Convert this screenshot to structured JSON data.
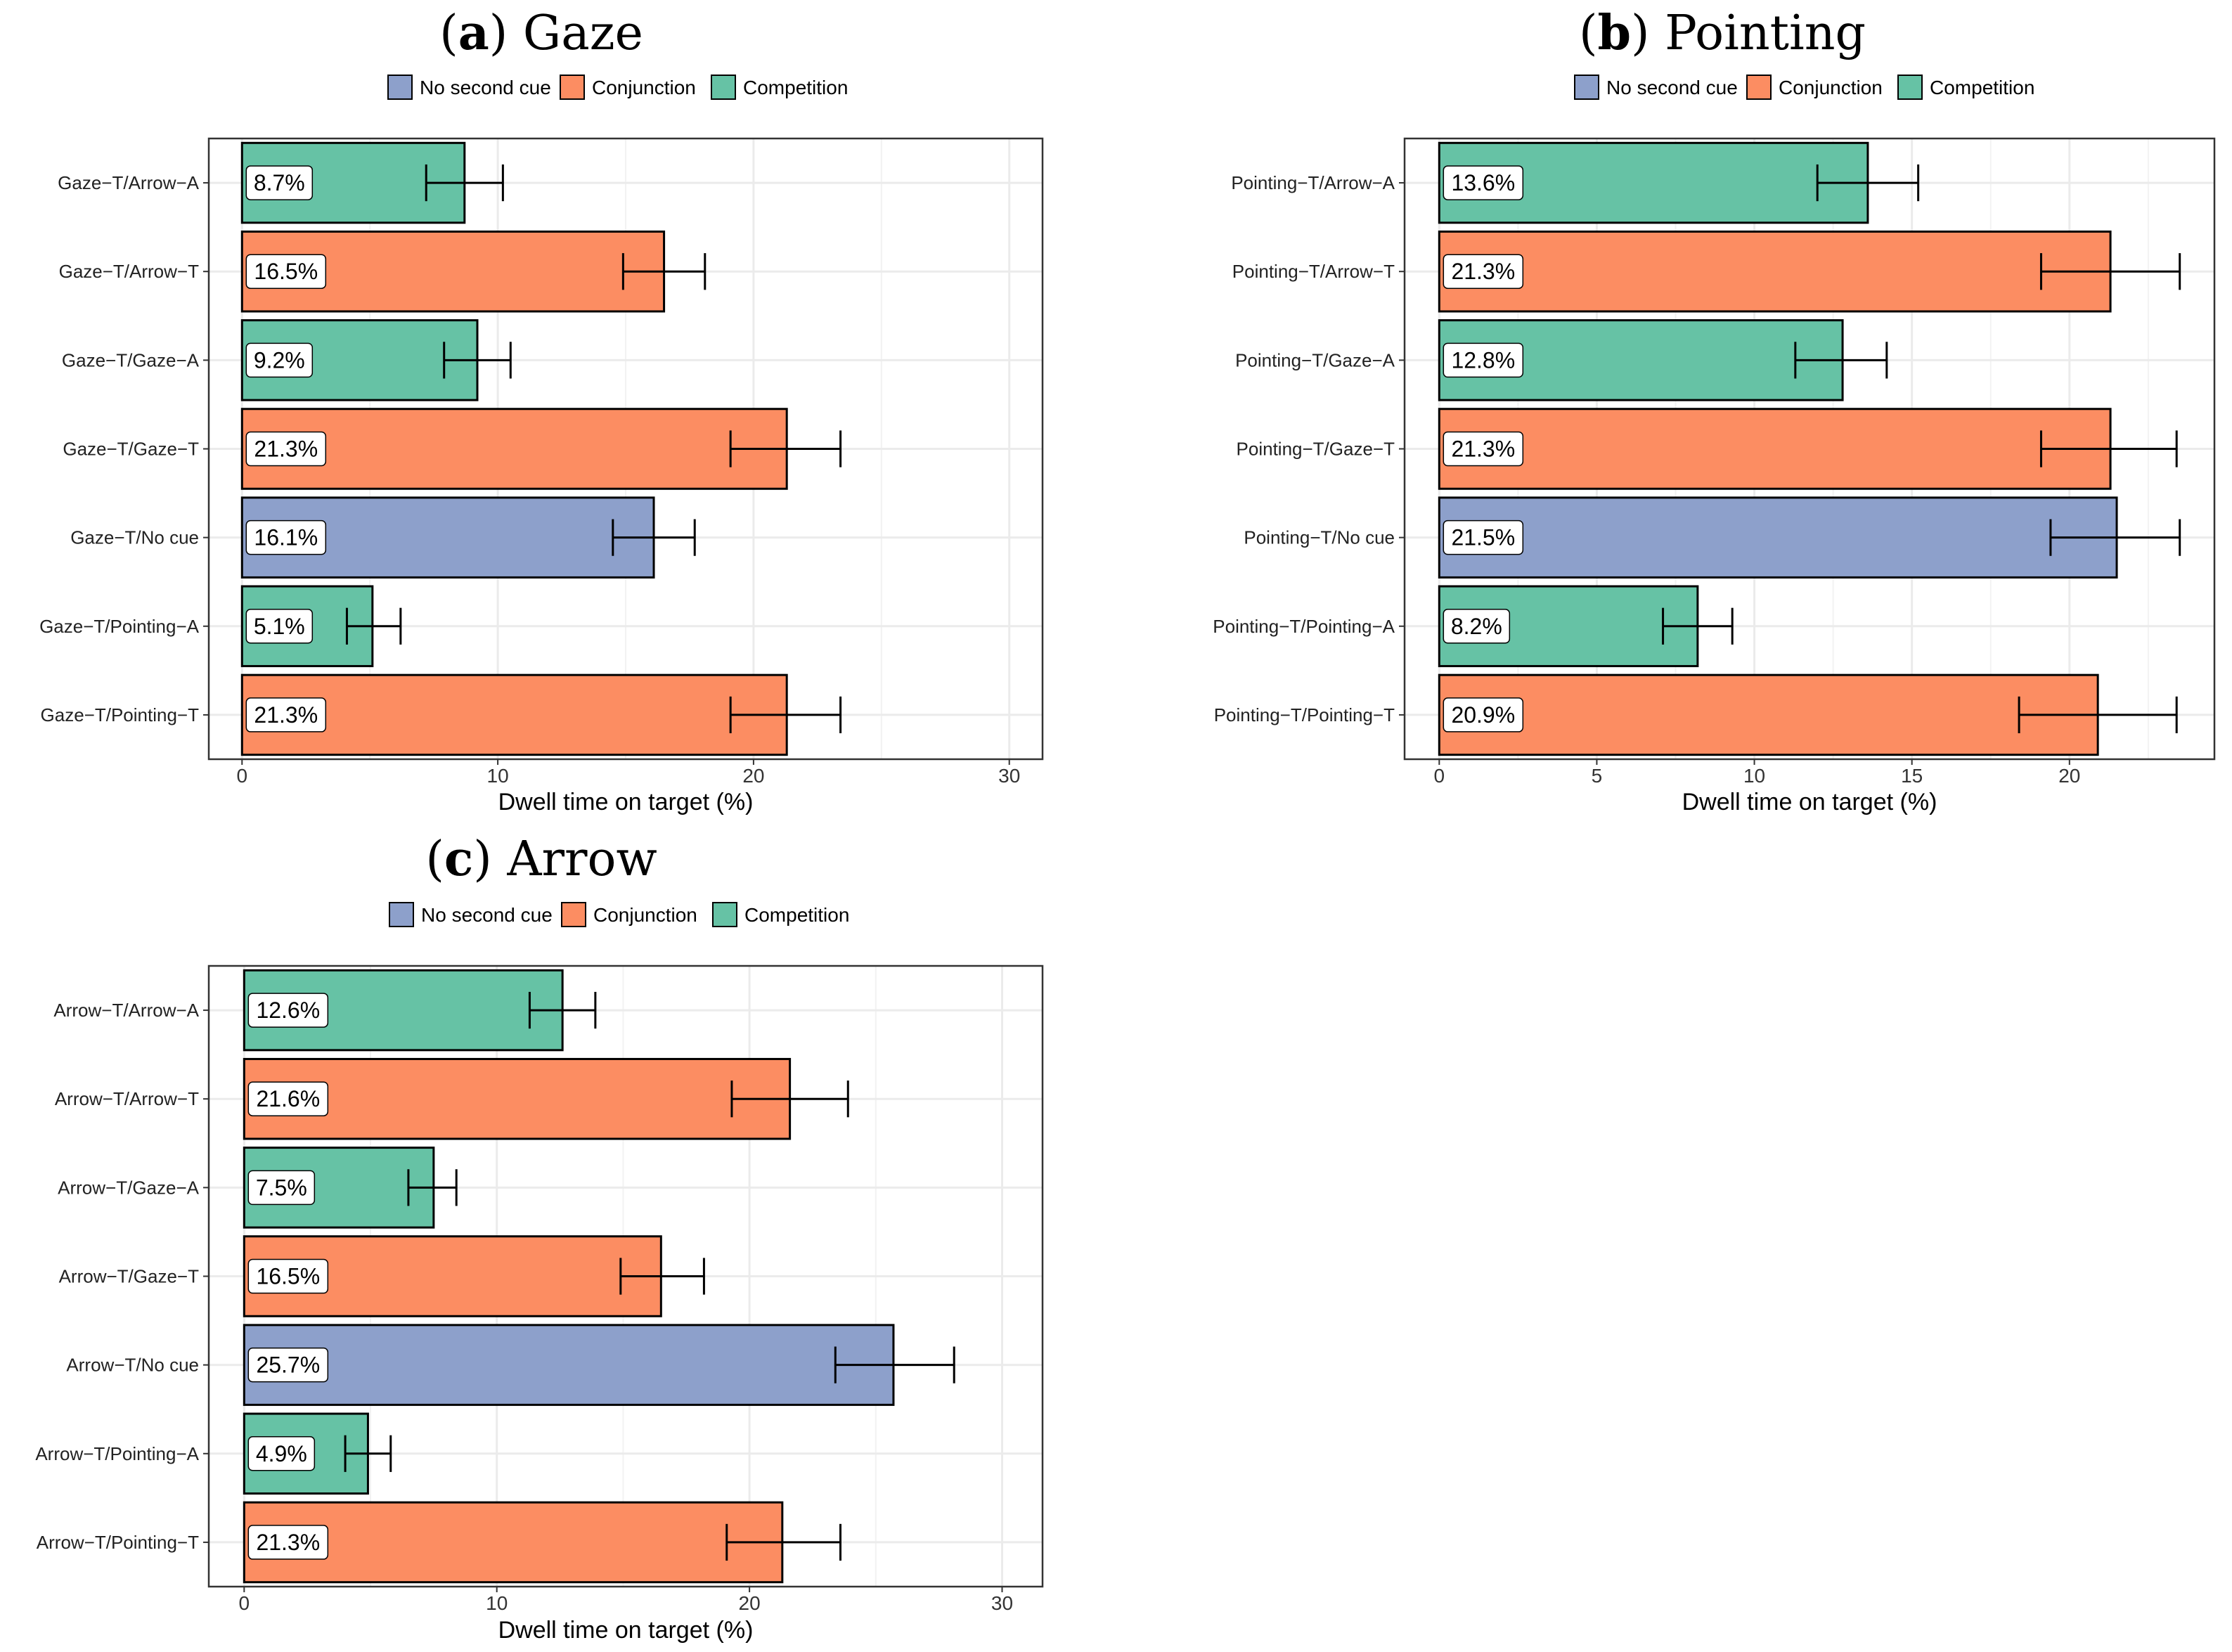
{
  "colors": {
    "no_second_cue": "#8da0cb",
    "conjunction": "#fc8d62",
    "competition": "#66c2a5",
    "grid": "#ebebeb"
  },
  "chart_data": [
    {
      "type": "bar",
      "orientation": "horizontal",
      "title_letter": "a",
      "title": "Gaze",
      "xlabel": "Dwell time on target (%)",
      "ylabel": "",
      "xlim": [
        -1.3,
        31.3
      ],
      "xticks": [
        0,
        10,
        20,
        30
      ],
      "legend": [
        "No second cue",
        "Conjunction",
        "Competition"
      ],
      "legend_position": "top",
      "categories": [
        "Gaze−T/Arrow−A",
        "Gaze−T/Arrow−T",
        "Gaze−T/Gaze−A",
        "Gaze−T/Gaze−T",
        "Gaze−T/No cue",
        "Gaze−T/Pointing−A",
        "Gaze−T/Pointing−T"
      ],
      "groups": [
        "Competition",
        "Conjunction",
        "Competition",
        "Conjunction",
        "No second cue",
        "Competition",
        "Conjunction"
      ],
      "values": [
        8.7,
        16.5,
        9.2,
        21.3,
        16.1,
        5.1,
        21.3
      ],
      "labels": [
        "8.7%",
        "16.5%",
        "9.2%",
        "21.3%",
        "16.1%",
        "5.1%",
        "21.3%"
      ],
      "err_low": [
        7.2,
        14.9,
        7.9,
        19.1,
        14.5,
        4.1,
        19.1
      ],
      "err_high": [
        10.2,
        18.1,
        10.5,
        23.4,
        17.7,
        6.2,
        23.4
      ]
    },
    {
      "type": "bar",
      "orientation": "horizontal",
      "title_letter": "b",
      "title": "Pointing",
      "xlabel": "Dwell time on target (%)",
      "ylabel": "",
      "xlim": [
        -1.1,
        24.6
      ],
      "xticks": [
        0,
        5,
        10,
        15,
        20
      ],
      "legend": [
        "No second cue",
        "Conjunction",
        "Competition"
      ],
      "legend_position": "top",
      "categories": [
        "Pointing−T/Arrow−A",
        "Pointing−T/Arrow−T",
        "Pointing−T/Gaze−A",
        "Pointing−T/Gaze−T",
        "Pointing−T/No cue",
        "Pointing−T/Pointing−A",
        "Pointing−T/Pointing−T"
      ],
      "groups": [
        "Competition",
        "Conjunction",
        "Competition",
        "Conjunction",
        "No second cue",
        "Competition",
        "Conjunction"
      ],
      "values": [
        13.6,
        21.3,
        12.8,
        21.3,
        21.5,
        8.2,
        20.9
      ],
      "labels": [
        "13.6%",
        "21.3%",
        "12.8%",
        "21.3%",
        "21.5%",
        "8.2%",
        "20.9%"
      ],
      "err_low": [
        12.0,
        19.1,
        11.3,
        19.1,
        19.4,
        7.1,
        18.4
      ],
      "err_high": [
        15.2,
        23.5,
        14.2,
        23.4,
        23.5,
        9.3,
        23.4
      ]
    },
    {
      "type": "bar",
      "orientation": "horizontal",
      "title_letter": "c",
      "title": "Arrow",
      "xlabel": "Dwell time on target (%)",
      "ylabel": "",
      "xlim": [
        -1.4,
        31.6
      ],
      "xticks": [
        0,
        10,
        20,
        30
      ],
      "legend": [
        "No second cue",
        "Conjunction",
        "Competition"
      ],
      "legend_position": "top",
      "categories": [
        "Arrow−T/Arrow−A",
        "Arrow−T/Arrow−T",
        "Arrow−T/Gaze−A",
        "Arrow−T/Gaze−T",
        "Arrow−T/No cue",
        "Arrow−T/Pointing−A",
        "Arrow−T/Pointing−T"
      ],
      "groups": [
        "Competition",
        "Conjunction",
        "Competition",
        "Conjunction",
        "No second cue",
        "Competition",
        "Conjunction"
      ],
      "values": [
        12.6,
        21.6,
        7.5,
        16.5,
        25.7,
        4.9,
        21.3
      ],
      "labels": [
        "12.6%",
        "21.6%",
        "7.5%",
        "16.5%",
        "25.7%",
        "4.9%",
        "21.3%"
      ],
      "err_low": [
        11.3,
        19.3,
        6.5,
        14.9,
        23.4,
        4.0,
        19.1
      ],
      "err_high": [
        13.9,
        23.9,
        8.4,
        18.2,
        28.1,
        5.8,
        23.6
      ]
    }
  ]
}
